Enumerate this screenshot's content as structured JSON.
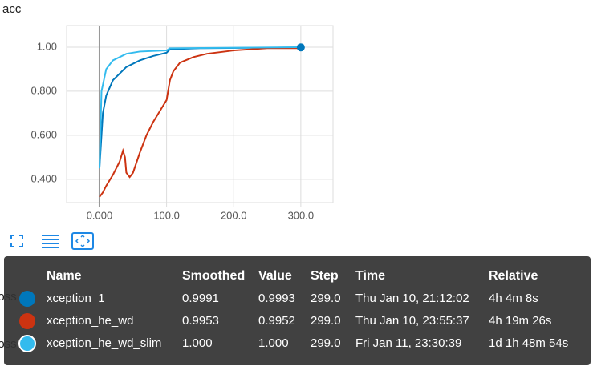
{
  "chart_data": {
    "type": "line",
    "title": "acc",
    "xlim": [
      -49,
      348
    ],
    "ylim": [
      0.294,
      1.098
    ],
    "xticks": [
      {
        "value": 0,
        "label": "0.000"
      },
      {
        "value": 100,
        "label": "100.0"
      },
      {
        "value": 200,
        "label": "200.0"
      },
      {
        "value": 300,
        "label": "300.0"
      }
    ],
    "yticks": [
      {
        "value": 0.4,
        "label": "0.400"
      },
      {
        "value": 0.6,
        "label": "0.600"
      },
      {
        "value": 0.8,
        "label": "0.800"
      },
      {
        "value": 1.0,
        "label": "1.00"
      }
    ],
    "grid": true,
    "series": [
      {
        "name": "xception_1",
        "color": "#0077bb",
        "x": [
          0,
          5,
          10,
          20,
          40,
          60,
          80,
          100,
          105,
          150,
          300
        ],
        "values": [
          0.45,
          0.7,
          0.78,
          0.85,
          0.91,
          0.94,
          0.96,
          0.975,
          0.99,
          0.995,
          0.999
        ]
      },
      {
        "name": "xception_he_wd",
        "color": "#cc3311",
        "x": [
          0,
          5,
          10,
          20,
          30,
          35,
          38,
          40,
          45,
          50,
          60,
          70,
          80,
          90,
          100,
          105,
          110,
          120,
          140,
          160,
          200,
          250,
          300
        ],
        "values": [
          0.32,
          0.34,
          0.37,
          0.42,
          0.48,
          0.53,
          0.5,
          0.43,
          0.41,
          0.43,
          0.52,
          0.6,
          0.66,
          0.71,
          0.76,
          0.85,
          0.89,
          0.93,
          0.955,
          0.97,
          0.985,
          0.995,
          0.995
        ]
      },
      {
        "name": "xception_he_wd_slim",
        "color": "#33bbee",
        "x": [
          0,
          3,
          10,
          20,
          40,
          60,
          100,
          105,
          300
        ],
        "values": [
          0.45,
          0.8,
          0.9,
          0.94,
          0.97,
          0.98,
          0.985,
          0.995,
          1.0
        ]
      }
    ]
  },
  "background_labels": [
    "loss",
    "loss"
  ],
  "tooltip": {
    "header": [
      "Name",
      "Smoothed",
      "Value",
      "Step",
      "Time",
      "Relative"
    ],
    "rows": [
      [
        "xception_1",
        "0.9991",
        "0.9993",
        "299.0",
        "Thu Jan 10, 21:12:02",
        "4h 4m 8s"
      ],
      [
        "xception_he_wd",
        "0.9953",
        "0.9952",
        "299.0",
        "Thu Jan 10, 23:55:37",
        "4h 19m 26s"
      ],
      [
        "xception_he_wd_slim",
        "1.000",
        "1.000",
        "299.0",
        "Fri Jan 11, 23:30:39",
        "1d 1h 48m 54s"
      ]
    ]
  }
}
